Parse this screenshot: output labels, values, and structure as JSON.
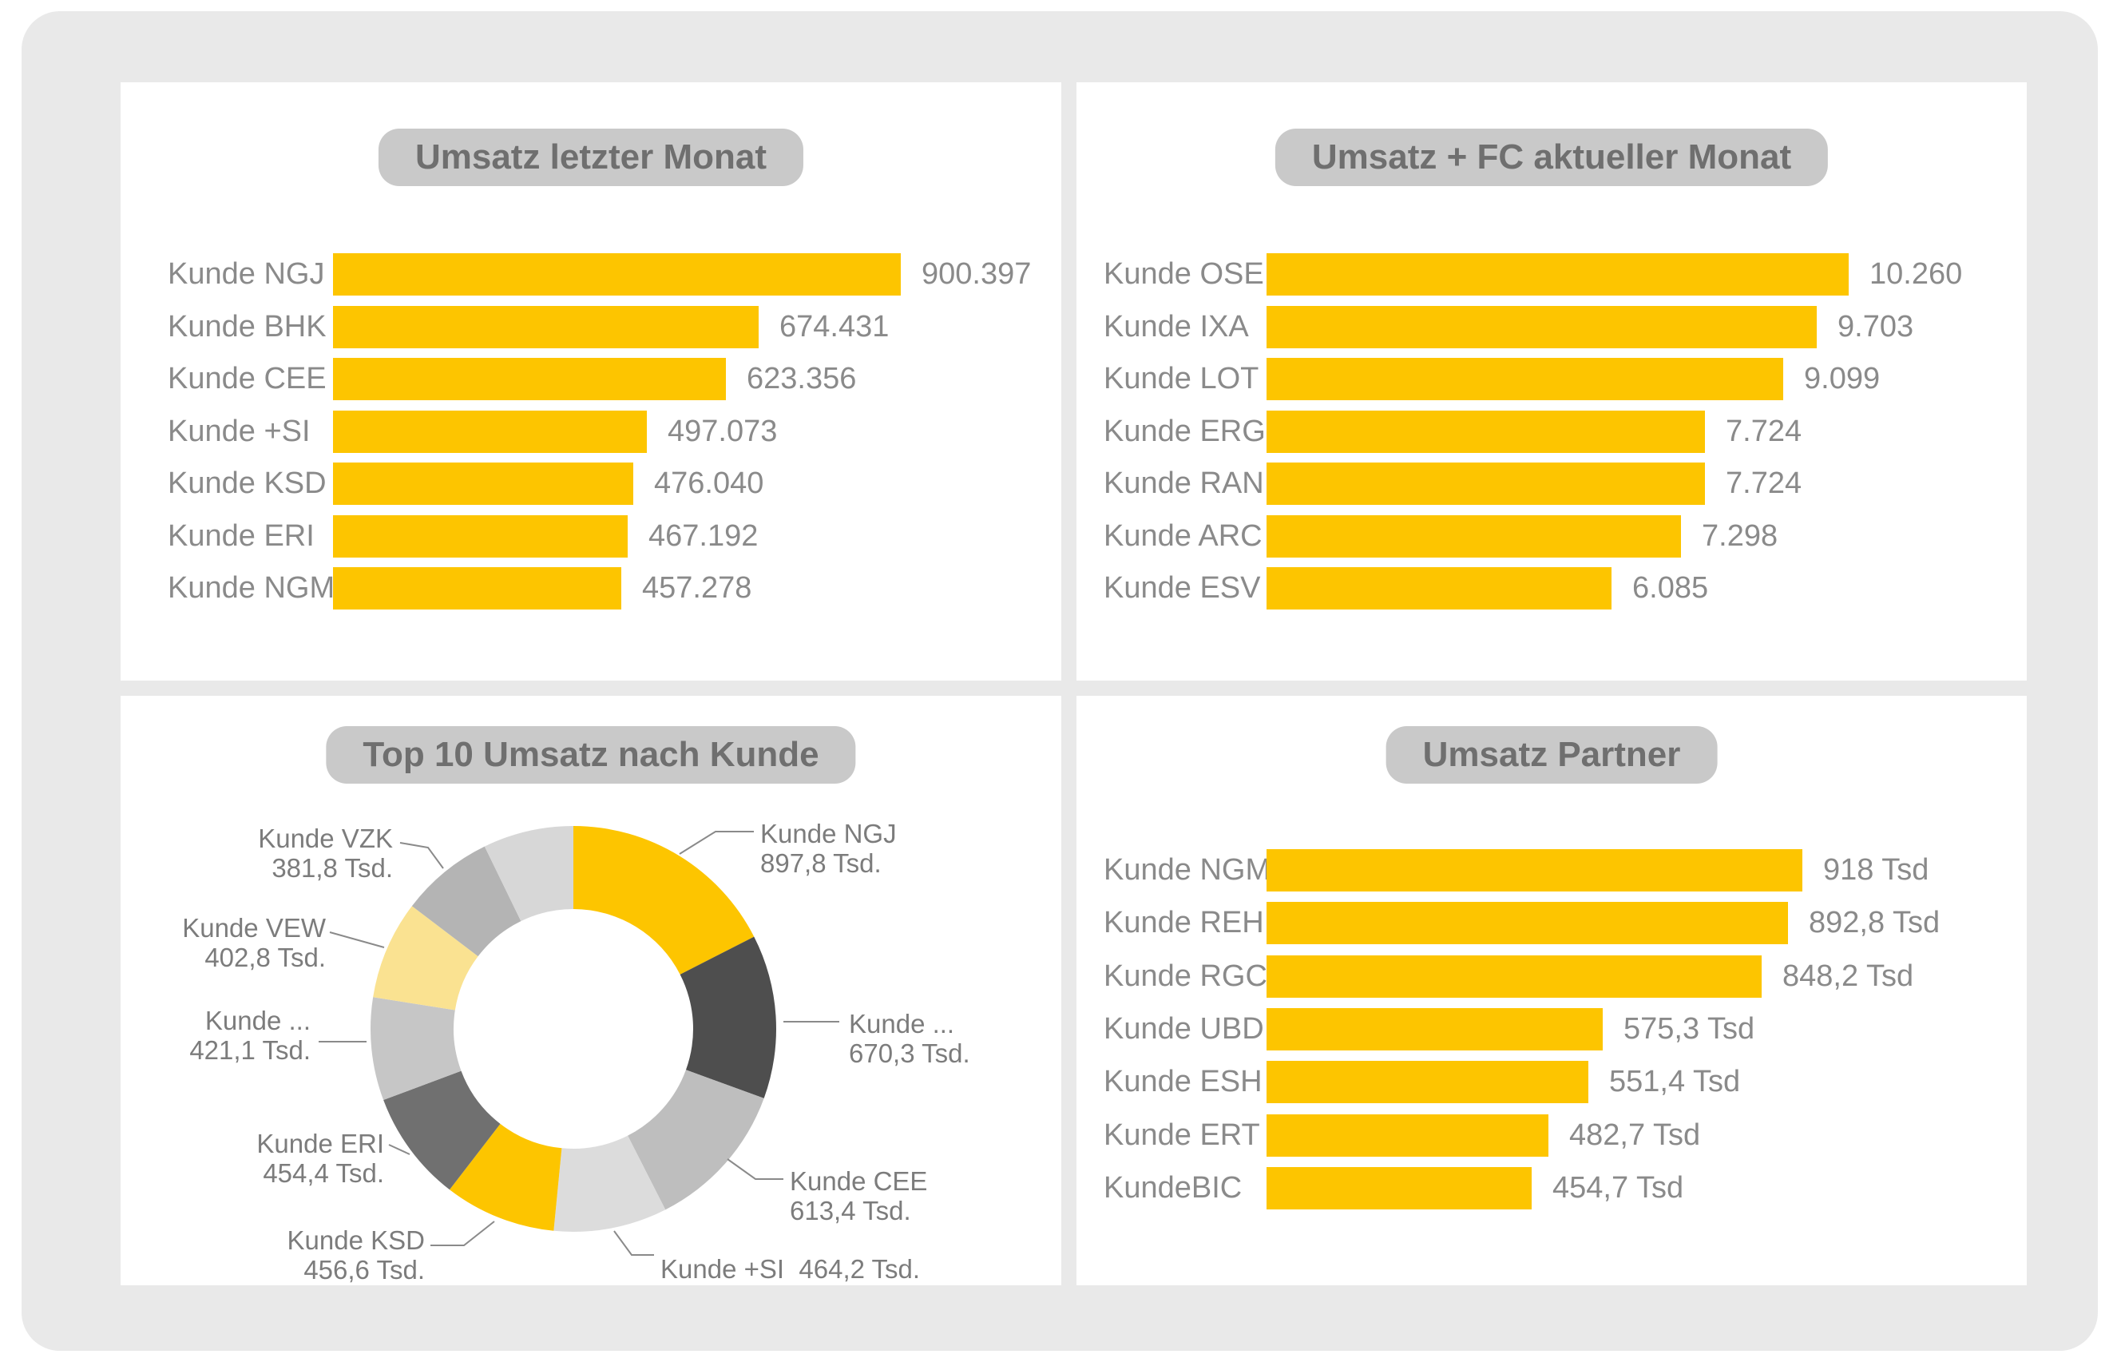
{
  "page": {
    "background": "#ffffff",
    "canvas_color": "#e9e9e9",
    "panel_color": "#ffffff",
    "accent_yellow": "#fdc500",
    "title_pill_color": "#c9c9c9",
    "title_text_color": "#6f6f6f",
    "label_text_color": "#8a8a8a"
  },
  "chart_data": [
    {
      "id": "umsatz-letzter-monat",
      "type": "bar",
      "orientation": "horizontal",
      "title": "Umsatz letzter Monat",
      "bar_color": "#fdc500",
      "grid": false,
      "legend": false,
      "categories": [
        "Kunde NGJ",
        "Kunde BHK",
        "Kunde CEE",
        "Kunde +SI",
        "Kunde KSD",
        "Kunde ERI",
        "Kunde NGM"
      ],
      "values": [
        900397,
        674431,
        623356,
        497073,
        476040,
        467192,
        457278
      ],
      "value_labels": [
        "900.397",
        "674.431",
        "623.356",
        "497.073",
        "476.040",
        "467.192",
        "457.278"
      ],
      "xlim": [
        0,
        1150000
      ]
    },
    {
      "id": "umsatz-fc-aktueller-monat",
      "type": "bar",
      "orientation": "horizontal",
      "title": "Umsatz + FC aktueller Monat",
      "bar_color": "#fdc500",
      "grid": false,
      "legend": false,
      "categories": [
        "Kunde OSE",
        "Kunde IXA",
        "Kunde LOT",
        "Kunde ERG",
        "Kunde RAN",
        "Kunde ARC",
        "Kunde ESV"
      ],
      "values": [
        10260,
        9703,
        9099,
        7724,
        7724,
        7298,
        6085
      ],
      "value_labels": [
        "10.260",
        "9.703",
        "9.099",
        "7.724",
        "7.724",
        "7.298",
        "6.085"
      ],
      "xlim": [
        0,
        13100
      ]
    },
    {
      "id": "top-10-umsatz-nach-kunde",
      "type": "pie",
      "subtype": "donut",
      "title": "Top 10 Umsatz nach Kunde",
      "unit": "Tsd.",
      "start_angle_deg": 0,
      "direction": "clockwise",
      "segments": [
        {
          "label": "Kunde NGJ",
          "value": 897.8,
          "value_label": "897,8 Tsd.",
          "label_lines": [
            "Kunde NGJ",
            "897,8 Tsd."
          ],
          "color": "#fdc500"
        },
        {
          "label": "Kunde ...",
          "value": 670.3,
          "value_label": "670,3 Tsd.",
          "label_lines": [
            "Kunde ...",
            "670,3 Tsd."
          ],
          "color": "#4e4e4e"
        },
        {
          "label": "Kunde CEE",
          "value": 613.4,
          "value_label": "613,4 Tsd.",
          "label_lines": [
            "Kunde CEE",
            "613,4 Tsd."
          ],
          "color": "#bebebe"
        },
        {
          "label": "Kunde +SI",
          "value": 464.2,
          "value_label": "464,2 Tsd.",
          "label_lines": [
            "Kunde +SI  464,2 Tsd."
          ],
          "color": "#dcdcdc"
        },
        {
          "label": "Kunde KSD",
          "value": 456.6,
          "value_label": "456,6 Tsd.",
          "label_lines": [
            "Kunde KSD",
            "456,6 Tsd."
          ],
          "color": "#fdc500"
        },
        {
          "label": "Kunde ERI",
          "value": 454.4,
          "value_label": "454,4 Tsd.",
          "label_lines": [
            "Kunde ERI",
            "454,4 Tsd."
          ],
          "color": "#707070"
        },
        {
          "label": "Kunde ...",
          "value": 421.1,
          "value_label": "421,1 Tsd.",
          "label_lines": [
            "Kunde ...",
            "421,1 Tsd."
          ],
          "color": "#c6c6c6"
        },
        {
          "label": "Kunde VEW",
          "value": 402.8,
          "value_label": "402,8 Tsd.",
          "label_lines": [
            "Kunde VEW",
            "402,8 Tsd."
          ],
          "color": "#fae291"
        },
        {
          "label": "Kunde VZK",
          "value": 381.8,
          "value_label": "381,8 Tsd.",
          "label_lines": [
            "Kunde VZK",
            "381,8 Tsd."
          ],
          "color": "#b4b4b4"
        },
        {
          "label": "",
          "value": 370,
          "value_label": "",
          "label_lines": [],
          "color": "#d7d7d7",
          "estimated": true
        }
      ]
    },
    {
      "id": "umsatz-partner",
      "type": "bar",
      "orientation": "horizontal",
      "title": "Umsatz Partner",
      "bar_color": "#fdc500",
      "grid": false,
      "legend": false,
      "categories": [
        "Kunde NGM",
        "Kunde REH",
        "Kunde RGC",
        "Kunde UBD",
        "Kunde ESH",
        "Kunde ERT",
        "KundeBIC"
      ],
      "values": [
        918,
        892.8,
        848.2,
        575.3,
        551.4,
        482.7,
        454.7
      ],
      "value_labels": [
        "918 Tsd",
        "892,8 Tsd",
        "848,2 Tsd",
        "575,3 Tsd",
        "551,4 Tsd",
        "482,7 Tsd",
        "454,7 Tsd"
      ],
      "xlim": [
        0,
        1290
      ]
    }
  ]
}
